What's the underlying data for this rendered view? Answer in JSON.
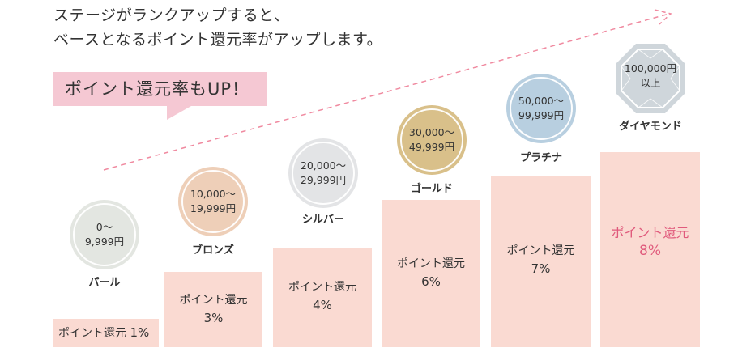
{
  "headline": {
    "line1": "ステージがランクアップすると、",
    "line2": "ベースとなるポイント還元率がアップします。"
  },
  "bubble": {
    "text": "ポイント還元率もUP！"
  },
  "colors": {
    "bubble": "#f5c8d3",
    "bar": "#fadad2",
    "highlight_text": "#e05a7c",
    "arrow": "#f08aa0",
    "pearl": "#e3e6e1",
    "bronze": "#eecfb8",
    "silver": "#e3e4e6",
    "gold": "#d9c08a",
    "platinum": "#b8cfe0",
    "diamond": "#cfd6db"
  },
  "stages": [
    {
      "name": "パール",
      "range_line1": "0〜",
      "range_line2": "9,999円",
      "return_label": "ポイント還元",
      "rate": "1%"
    },
    {
      "name": "ブロンズ",
      "range_line1": "10,000〜",
      "range_line2": "19,999円",
      "return_label": "ポイント還元",
      "rate": "3%"
    },
    {
      "name": "シルバー",
      "range_line1": "20,000〜",
      "range_line2": "29,999円",
      "return_label": "ポイント還元",
      "rate": "4%"
    },
    {
      "name": "ゴールド",
      "range_line1": "30,000〜",
      "range_line2": "49,999円",
      "return_label": "ポイント還元",
      "rate": "6%"
    },
    {
      "name": "プラチナ",
      "range_line1": "50,000〜",
      "range_line2": "99,999円",
      "return_label": "ポイント還元",
      "rate": "7%"
    },
    {
      "name": "ダイヤモンド",
      "range_line1": "100,000円",
      "range_line2": "以上",
      "return_label": "ポイント還元",
      "rate": "8%"
    }
  ]
}
